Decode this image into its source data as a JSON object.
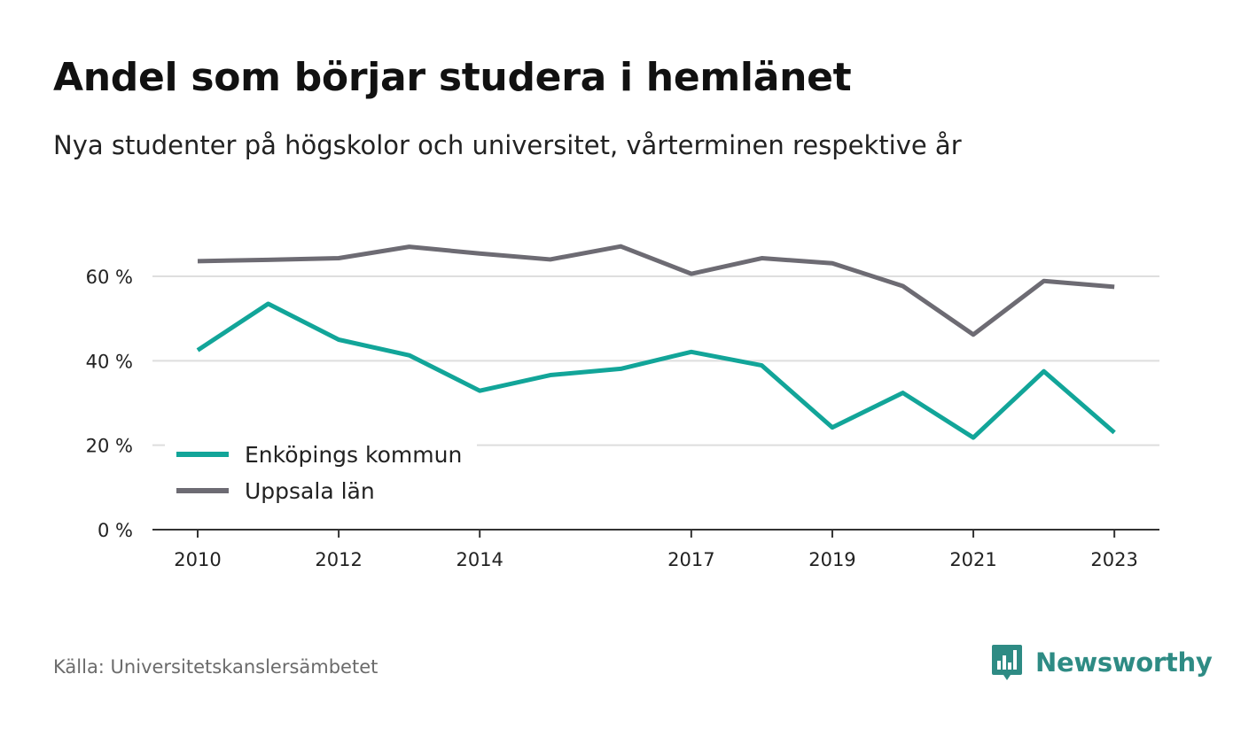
{
  "header": {
    "title": "Andel som börjar studera i hemlänet",
    "subtitle": "Nya studenter på högskolor och universitet, vårterminen respektive år"
  },
  "footer": {
    "source": "Källa: Universitetskanslersämbetet",
    "brand": "Newsworthy",
    "brand_icon": "bar-chart-speech-bubble-icon",
    "brand_color": "#2e8b84"
  },
  "chart_data": {
    "type": "line",
    "x": [
      2010,
      2011,
      2012,
      2013,
      2014,
      2015,
      2016,
      2017,
      2018,
      2019,
      2020,
      2021,
      2022,
      2023
    ],
    "x_tick_labels": [
      "2010",
      "2012",
      "2014",
      "2017",
      "2019",
      "2021",
      "2023"
    ],
    "y_tick_labels": [
      "0 %",
      "20 %",
      "40 %",
      "60 %"
    ],
    "y_ticks": [
      0,
      20,
      40,
      60
    ],
    "ylim": [
      0,
      72
    ],
    "xlim": [
      2009.4,
      2024.3
    ],
    "grid": true,
    "legend_position": "bottom-left",
    "series": [
      {
        "name": "Enköpings kommun",
        "color": "#12a599",
        "values": [
          42.5,
          53.5,
          45.0,
          41.3,
          32.9,
          36.6,
          38.1,
          42.1,
          38.9,
          24.2,
          32.4,
          21.8,
          37.5,
          23.0
        ]
      },
      {
        "name": "Uppsala län",
        "color": "#6d6b73",
        "values": [
          63.6,
          63.9,
          64.3,
          67.0,
          65.4,
          64.0,
          67.1,
          60.6,
          64.3,
          63.1,
          57.7,
          46.2,
          58.9,
          57.5
        ]
      }
    ]
  }
}
